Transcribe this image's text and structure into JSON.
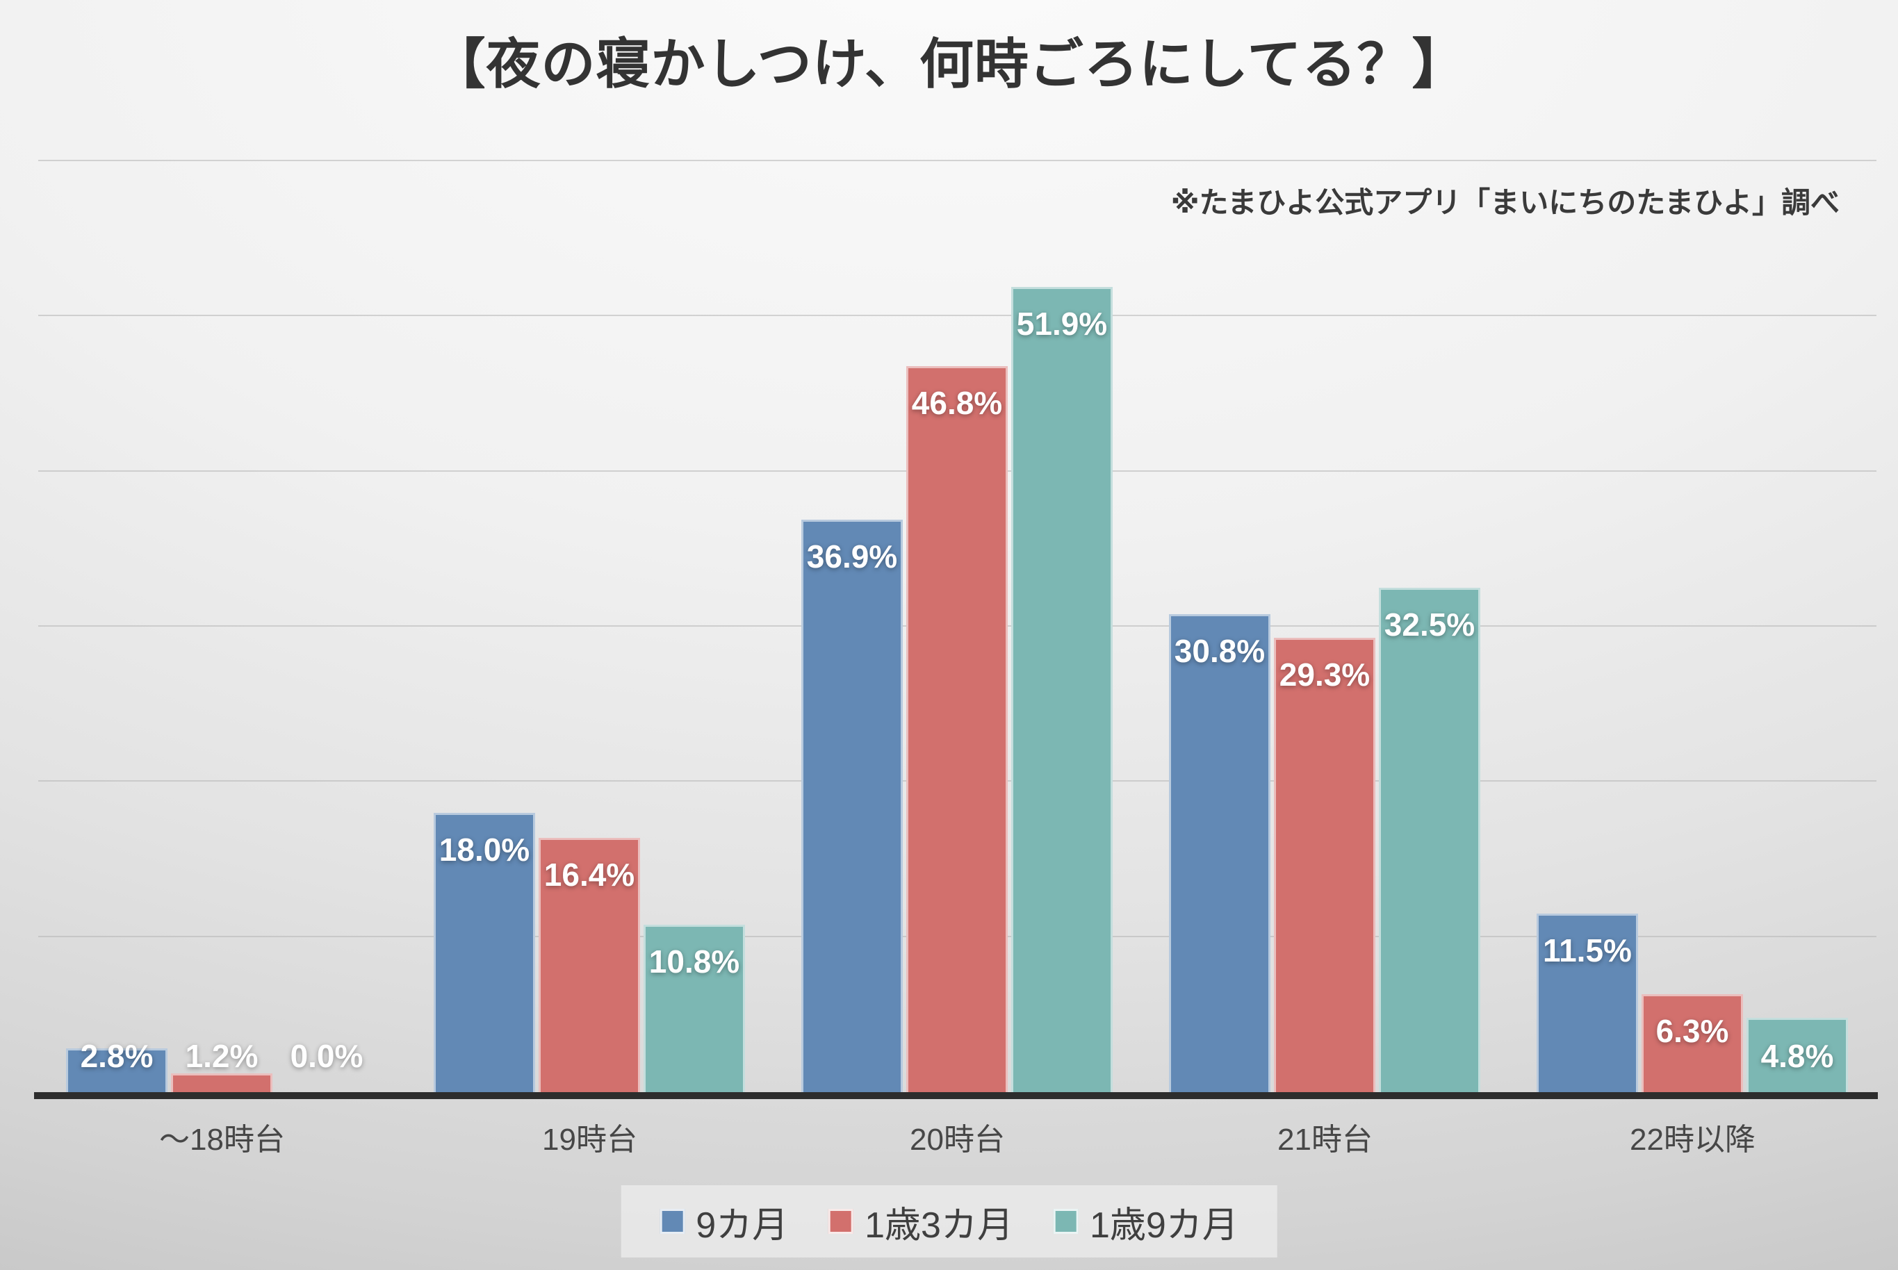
{
  "title": "【夜の寝かしつけ、何時ごろにしてる？】",
  "source_note": "※たまひよ公式アプリ「まいにちのたまひよ」調べ",
  "chart_data": {
    "type": "bar",
    "title": "【夜の寝かしつけ、何時ごろにしてる？】",
    "categories": [
      "～18時台",
      "19時台",
      "20時台",
      "21時台",
      "22時以降"
    ],
    "series": [
      {
        "name": "9カ月",
        "color": "#6289b5",
        "values": [
          2.8,
          18.0,
          36.9,
          30.8,
          11.5
        ],
        "labels": [
          "2.8%",
          "18.0%",
          "36.9%",
          "30.8%",
          "11.5%"
        ]
      },
      {
        "name": "1歳3カ月",
        "color": "#d2706d",
        "values": [
          1.2,
          16.4,
          46.8,
          29.3,
          6.3
        ],
        "labels": [
          "1.2%",
          "16.4%",
          "46.8%",
          "29.3%",
          "6.3%"
        ]
      },
      {
        "name": "1歳9カ月",
        "color": "#7cb7b3",
        "values": [
          0.0,
          10.8,
          51.9,
          32.5,
          4.8
        ],
        "labels": [
          "0.0%",
          "10.8%",
          "51.9%",
          "32.5%",
          "4.8%"
        ]
      }
    ],
    "xlabel": "",
    "ylabel": "",
    "ylim": [
      0,
      60
    ],
    "gridline_step": 10,
    "grid": true,
    "y_axis_labels_visible": false,
    "legend_position": "bottom"
  },
  "colors": {
    "axis_line": "#2d2d2d",
    "gridline": "#b5b5b5",
    "bar_label_text": "#ffffff",
    "category_text": "#474747",
    "title_text": "#333333"
  }
}
